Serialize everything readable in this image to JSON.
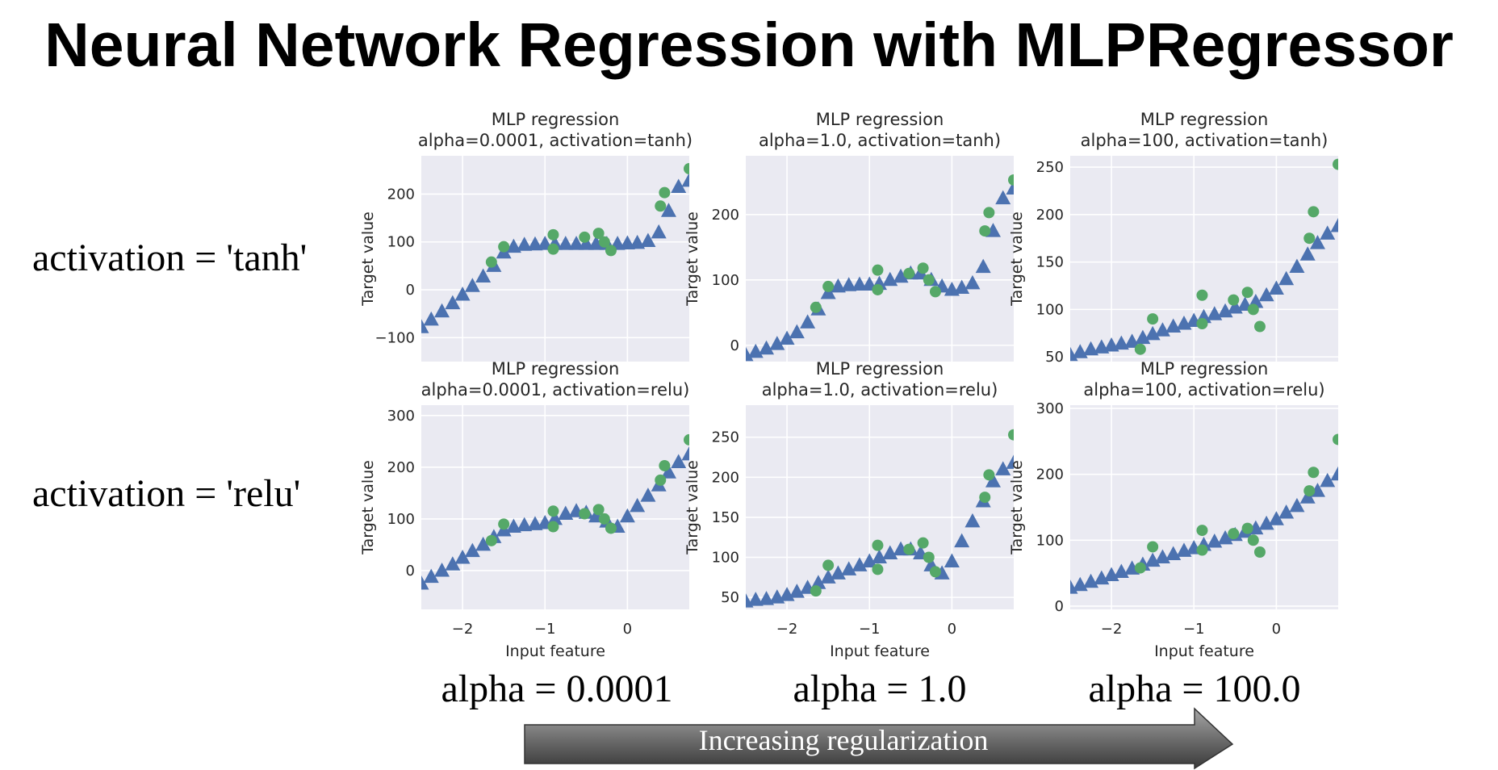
{
  "slide": {
    "title": "Neural Network Regression with MLPRegressor",
    "row_labels": [
      "activation = 'tanh'",
      "activation = 'relu'"
    ],
    "col_labels": [
      "alpha = 0.0001",
      "alpha = 1.0",
      "alpha = 100.0"
    ],
    "arrow_label": "Increasing regularization"
  },
  "colors": {
    "axes_bg": "#eaeaf2",
    "grid": "#ffffff",
    "prediction": "#4c72b0",
    "data_points": "#55a868"
  },
  "chart_data": [
    {
      "type": "scatter",
      "title_line1": "MLP regression",
      "title_line2": "alpha=0.0001, activation=tanh)",
      "xlabel": "Input feature",
      "ylabel": "Target value",
      "xlim": [
        -2.5,
        0.75
      ],
      "ylim": [
        -150,
        280
      ],
      "xticks": [
        -2,
        -1,
        0
      ],
      "yticks": [
        -100,
        0,
        100,
        200
      ],
      "ytick_labels": [
        "−100",
        "0",
        "100",
        "200"
      ],
      "grid": true,
      "series": [
        {
          "marker": "triangle",
          "x": [
            -2.5,
            -2.38,
            -2.25,
            -2.12,
            -2.0,
            -1.88,
            -1.75,
            -1.62,
            -1.5,
            -1.38,
            -1.25,
            -1.12,
            -1.0,
            -0.88,
            -0.75,
            -0.62,
            -0.5,
            -0.38,
            -0.25,
            -0.12,
            0.0,
            0.12,
            0.25,
            0.38,
            0.5,
            0.62,
            0.75
          ],
          "y": [
            -78,
            -62,
            -45,
            -28,
            -10,
            8,
            28,
            50,
            78,
            90,
            94,
            95,
            96,
            96,
            96,
            96,
            96,
            96,
            96,
            96,
            97,
            98,
            102,
            120,
            165,
            215,
            228
          ]
        },
        {
          "marker": "circle",
          "x": [
            -1.65,
            -1.5,
            -0.9,
            -0.9,
            -0.52,
            -0.35,
            -0.28,
            -0.2,
            0.4,
            0.45,
            0.75
          ],
          "y": [
            58,
            90,
            115,
            85,
            110,
            118,
            100,
            82,
            175,
            203,
            253
          ]
        }
      ]
    },
    {
      "type": "scatter",
      "title_line1": "MLP regression",
      "title_line2": "alpha=1.0, activation=tanh)",
      "xlabel": "Input feature",
      "ylabel": "Target value",
      "xlim": [
        -2.5,
        0.75
      ],
      "ylim": [
        -25,
        290
      ],
      "xticks": [
        -2,
        -1,
        0
      ],
      "yticks": [
        0,
        100,
        200
      ],
      "ytick_labels": [
        "0",
        "100",
        "200"
      ],
      "grid": true,
      "series": [
        {
          "marker": "triangle",
          "x": [
            -2.5,
            -2.38,
            -2.25,
            -2.12,
            -2.0,
            -1.88,
            -1.75,
            -1.62,
            -1.5,
            -1.38,
            -1.25,
            -1.12,
            -1.0,
            -0.88,
            -0.75,
            -0.62,
            -0.5,
            -0.38,
            -0.25,
            -0.12,
            0.0,
            0.12,
            0.25,
            0.38,
            0.5,
            0.62,
            0.75
          ],
          "y": [
            -15,
            -10,
            -5,
            2,
            10,
            20,
            35,
            55,
            80,
            90,
            92,
            93,
            93,
            94,
            100,
            105,
            110,
            110,
            100,
            90,
            85,
            88,
            95,
            120,
            175,
            225,
            240
          ]
        },
        {
          "marker": "circle",
          "x": [
            -1.65,
            -1.5,
            -0.9,
            -0.9,
            -0.52,
            -0.35,
            -0.28,
            -0.2,
            0.4,
            0.45,
            0.75
          ],
          "y": [
            58,
            90,
            115,
            85,
            110,
            118,
            100,
            82,
            175,
            203,
            253
          ]
        }
      ]
    },
    {
      "type": "scatter",
      "title_line1": "MLP regression",
      "title_line2": "alpha=100, activation=tanh)",
      "xlabel": "Input feature",
      "ylabel": "Target value",
      "xlim": [
        -2.5,
        0.75
      ],
      "ylim": [
        45,
        262
      ],
      "xticks": [
        -2,
        -1,
        0
      ],
      "yticks": [
        50,
        100,
        150,
        200,
        250
      ],
      "ytick_labels": [
        "50",
        "100",
        "150",
        "200",
        "250"
      ],
      "grid": true,
      "series": [
        {
          "marker": "triangle",
          "x": [
            -2.5,
            -2.38,
            -2.25,
            -2.12,
            -2.0,
            -1.88,
            -1.75,
            -1.62,
            -1.5,
            -1.38,
            -1.25,
            -1.12,
            -1.0,
            -0.88,
            -0.75,
            -0.62,
            -0.5,
            -0.38,
            -0.25,
            -0.12,
            0.0,
            0.12,
            0.25,
            0.38,
            0.5,
            0.62,
            0.75
          ],
          "y": [
            52,
            55,
            58,
            60,
            62,
            64,
            66,
            70,
            74,
            78,
            82,
            85,
            88,
            92,
            95,
            98,
            102,
            105,
            108,
            115,
            122,
            132,
            145,
            158,
            170,
            180,
            188
          ]
        },
        {
          "marker": "circle",
          "x": [
            -1.65,
            -1.5,
            -0.9,
            -0.9,
            -0.52,
            -0.35,
            -0.28,
            -0.2,
            0.4,
            0.45,
            0.75
          ],
          "y": [
            58,
            90,
            115,
            85,
            110,
            118,
            100,
            82,
            175,
            203,
            253
          ]
        }
      ]
    },
    {
      "type": "scatter",
      "title_line1": "MLP regression",
      "title_line2": "alpha=0.0001, activation=relu)",
      "xlabel": "Input feature",
      "ylabel": "Target value",
      "xlim": [
        -2.5,
        0.75
      ],
      "ylim": [
        -75,
        320
      ],
      "xticks": [
        -2,
        -1,
        0
      ],
      "xtick_labels": [
        "−2",
        "−1",
        "0"
      ],
      "yticks": [
        0,
        100,
        200,
        300
      ],
      "ytick_labels": [
        "0",
        "100",
        "200",
        "300"
      ],
      "grid": true,
      "series": [
        {
          "marker": "triangle",
          "x": [
            -2.5,
            -2.38,
            -2.25,
            -2.12,
            -2.0,
            -1.88,
            -1.75,
            -1.62,
            -1.5,
            -1.38,
            -1.25,
            -1.12,
            -1.0,
            -0.88,
            -0.75,
            -0.62,
            -0.5,
            -0.38,
            -0.25,
            -0.12,
            0.0,
            0.12,
            0.25,
            0.38,
            0.5,
            0.62,
            0.75
          ],
          "y": [
            -25,
            -12,
            0,
            12,
            25,
            38,
            50,
            65,
            78,
            85,
            88,
            90,
            92,
            100,
            110,
            115,
            112,
            105,
            95,
            85,
            105,
            125,
            145,
            165,
            190,
            210,
            225
          ]
        },
        {
          "marker": "circle",
          "x": [
            -1.65,
            -1.5,
            -0.9,
            -0.9,
            -0.52,
            -0.35,
            -0.28,
            -0.2,
            0.4,
            0.45,
            0.75
          ],
          "y": [
            58,
            90,
            115,
            85,
            110,
            118,
            100,
            82,
            175,
            203,
            253
          ]
        }
      ]
    },
    {
      "type": "scatter",
      "title_line1": "MLP regression",
      "title_line2": "alpha=1.0, activation=relu)",
      "xlabel": "Input feature",
      "ylabel": "Target value",
      "xlim": [
        -2.5,
        0.75
      ],
      "ylim": [
        35,
        290
      ],
      "xticks": [
        -2,
        -1,
        0
      ],
      "xtick_labels": [
        "−2",
        "−1",
        "0"
      ],
      "yticks": [
        50,
        100,
        150,
        200,
        250
      ],
      "ytick_labels": [
        "50",
        "100",
        "150",
        "200",
        "250"
      ],
      "grid": true,
      "series": [
        {
          "marker": "triangle",
          "x": [
            -2.5,
            -2.38,
            -2.25,
            -2.12,
            -2.0,
            -1.88,
            -1.75,
            -1.62,
            -1.5,
            -1.38,
            -1.25,
            -1.12,
            -1.0,
            -0.88,
            -0.75,
            -0.62,
            -0.5,
            -0.38,
            -0.25,
            -0.12,
            0.0,
            0.12,
            0.25,
            0.38,
            0.5,
            0.62,
            0.75
          ],
          "y": [
            45,
            47,
            48,
            50,
            53,
            57,
            62,
            68,
            75,
            80,
            85,
            90,
            95,
            100,
            105,
            110,
            110,
            105,
            90,
            80,
            95,
            120,
            145,
            170,
            195,
            210,
            218
          ]
        },
        {
          "marker": "circle",
          "x": [
            -1.65,
            -1.5,
            -0.9,
            -0.9,
            -0.52,
            -0.35,
            -0.28,
            -0.2,
            0.4,
            0.45,
            0.75
          ],
          "y": [
            58,
            90,
            115,
            85,
            110,
            118,
            100,
            82,
            175,
            203,
            253
          ]
        }
      ]
    },
    {
      "type": "scatter",
      "title_line1": "MLP regression",
      "title_line2": "alpha=100, activation=relu)",
      "xlabel": "Input feature",
      "ylabel": "Target value",
      "xlim": [
        -2.5,
        0.75
      ],
      "ylim": [
        -5,
        305
      ],
      "xticks": [
        -2,
        -1,
        0
      ],
      "xtick_labels": [
        "−2",
        "−1",
        "0"
      ],
      "yticks": [
        0,
        100,
        200,
        300
      ],
      "ytick_labels": [
        "0",
        "100",
        "200",
        "300"
      ],
      "grid": true,
      "series": [
        {
          "marker": "triangle",
          "x": [
            -2.5,
            -2.38,
            -2.25,
            -2.12,
            -2.0,
            -1.88,
            -1.75,
            -1.62,
            -1.5,
            -1.38,
            -1.25,
            -1.12,
            -1.0,
            -0.88,
            -0.75,
            -0.62,
            -0.5,
            -0.38,
            -0.25,
            -0.12,
            0.0,
            0.12,
            0.25,
            0.38,
            0.5,
            0.62,
            0.75
          ],
          "y": [
            28,
            32,
            37,
            42,
            47,
            52,
            57,
            63,
            69,
            74,
            79,
            84,
            88,
            93,
            98,
            103,
            108,
            113,
            118,
            125,
            132,
            142,
            152,
            165,
            175,
            190,
            200
          ]
        },
        {
          "marker": "circle",
          "x": [
            -1.65,
            -1.5,
            -0.9,
            -0.9,
            -0.52,
            -0.35,
            -0.28,
            -0.2,
            0.4,
            0.45,
            0.75
          ],
          "y": [
            58,
            90,
            115,
            85,
            110,
            118,
            100,
            82,
            175,
            203,
            253
          ]
        }
      ]
    }
  ]
}
